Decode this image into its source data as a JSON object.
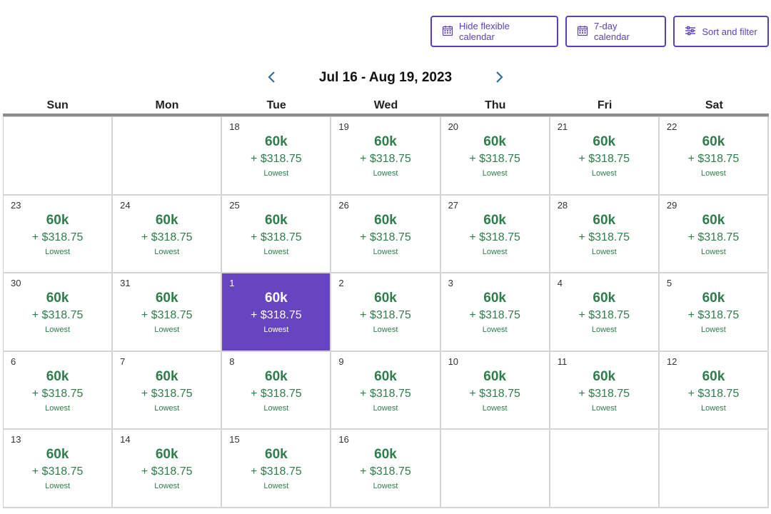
{
  "toolbar": {
    "hide_flexible_label": "Hide flexible calendar",
    "seven_day_label": "7-day calendar",
    "sort_filter_label": "Sort and filter"
  },
  "range": {
    "title": "Jul 16 - Aug 19, 2023"
  },
  "weekdays": [
    "Sun",
    "Mon",
    "Tue",
    "Wed",
    "Thu",
    "Fri",
    "Sat"
  ],
  "colors": {
    "accent": "#5b3fb8",
    "selected_bg": "#6744c0",
    "price_green": "#2e7d4a",
    "nav_arrow": "#2f6f9a"
  },
  "calendar": {
    "weeks": [
      [
        {
          "day": "",
          "miles": "",
          "cash": "",
          "tag": ""
        },
        {
          "day": "",
          "miles": "",
          "cash": "",
          "tag": ""
        },
        {
          "day": "18",
          "miles": "60k",
          "cash": "+ $318.75",
          "tag": "Lowest"
        },
        {
          "day": "19",
          "miles": "60k",
          "cash": "+ $318.75",
          "tag": "Lowest"
        },
        {
          "day": "20",
          "miles": "60k",
          "cash": "+ $318.75",
          "tag": "Lowest"
        },
        {
          "day": "21",
          "miles": "60k",
          "cash": "+ $318.75",
          "tag": "Lowest"
        },
        {
          "day": "22",
          "miles": "60k",
          "cash": "+ $318.75",
          "tag": "Lowest"
        }
      ],
      [
        {
          "day": "23",
          "miles": "60k",
          "cash": "+ $318.75",
          "tag": "Lowest"
        },
        {
          "day": "24",
          "miles": "60k",
          "cash": "+ $318.75",
          "tag": "Lowest"
        },
        {
          "day": "25",
          "miles": "60k",
          "cash": "+ $318.75",
          "tag": "Lowest"
        },
        {
          "day": "26",
          "miles": "60k",
          "cash": "+ $318.75",
          "tag": "Lowest"
        },
        {
          "day": "27",
          "miles": "60k",
          "cash": "+ $318.75",
          "tag": "Lowest"
        },
        {
          "day": "28",
          "miles": "60k",
          "cash": "+ $318.75",
          "tag": "Lowest"
        },
        {
          "day": "29",
          "miles": "60k",
          "cash": "+ $318.75",
          "tag": "Lowest"
        }
      ],
      [
        {
          "day": "30",
          "miles": "60k",
          "cash": "+ $318.75",
          "tag": "Lowest"
        },
        {
          "day": "31",
          "miles": "60k",
          "cash": "+ $318.75",
          "tag": "Lowest"
        },
        {
          "day": "1",
          "miles": "60k",
          "cash": "+ $318.75",
          "tag": "Lowest",
          "selected": true
        },
        {
          "day": "2",
          "miles": "60k",
          "cash": "+ $318.75",
          "tag": "Lowest"
        },
        {
          "day": "3",
          "miles": "60k",
          "cash": "+ $318.75",
          "tag": "Lowest"
        },
        {
          "day": "4",
          "miles": "60k",
          "cash": "+ $318.75",
          "tag": "Lowest"
        },
        {
          "day": "5",
          "miles": "60k",
          "cash": "+ $318.75",
          "tag": "Lowest"
        }
      ],
      [
        {
          "day": "6",
          "miles": "60k",
          "cash": "+ $318.75",
          "tag": "Lowest"
        },
        {
          "day": "7",
          "miles": "60k",
          "cash": "+ $318.75",
          "tag": "Lowest"
        },
        {
          "day": "8",
          "miles": "60k",
          "cash": "+ $318.75",
          "tag": "Lowest"
        },
        {
          "day": "9",
          "miles": "60k",
          "cash": "+ $318.75",
          "tag": "Lowest"
        },
        {
          "day": "10",
          "miles": "60k",
          "cash": "+ $318.75",
          "tag": "Lowest"
        },
        {
          "day": "11",
          "miles": "60k",
          "cash": "+ $318.75",
          "tag": "Lowest"
        },
        {
          "day": "12",
          "miles": "60k",
          "cash": "+ $318.75",
          "tag": "Lowest"
        }
      ],
      [
        {
          "day": "13",
          "miles": "60k",
          "cash": "+ $318.75",
          "tag": "Lowest"
        },
        {
          "day": "14",
          "miles": "60k",
          "cash": "+ $318.75",
          "tag": "Lowest"
        },
        {
          "day": "15",
          "miles": "60k",
          "cash": "+ $318.75",
          "tag": "Lowest"
        },
        {
          "day": "16",
          "miles": "60k",
          "cash": "+ $318.75",
          "tag": "Lowest"
        },
        {
          "day": "",
          "miles": "",
          "cash": "",
          "tag": ""
        },
        {
          "day": "",
          "miles": "",
          "cash": "",
          "tag": ""
        },
        {
          "day": "",
          "miles": "",
          "cash": "",
          "tag": ""
        }
      ]
    ]
  }
}
